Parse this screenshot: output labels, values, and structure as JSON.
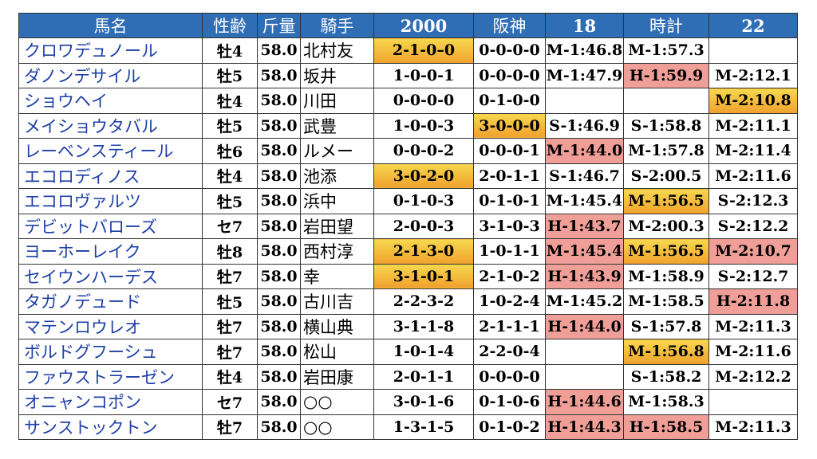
{
  "headers": [
    "馬名",
    "性齢",
    "斤量",
    "騎手",
    "2000",
    "阪神",
    "18",
    "時計",
    "22"
  ],
  "colors": {
    "header": "#2f6db5",
    "orange": "#f0a12e",
    "red": "#ef9f98",
    "name": "#1d3fa6"
  },
  "rows": [
    {
      "cells": [
        "クロワデュノール",
        "牡4",
        "58.0",
        "北村友",
        "2-1-0–0",
        "0-0-0-0",
        "M-1:46.8",
        "M-1:57.3",
        ""
      ],
      "hl": [
        "",
        "",
        "",
        "",
        "orange",
        "",
        "",
        "",
        ""
      ]
    },
    {
      "cells": [
        "ダノンデサイル",
        "牡5",
        "58.0",
        "坂井",
        "1-0-0-1",
        "0-0-0-0",
        "M-1:47.9",
        "H-1:59.9",
        "M-2:12.1"
      ],
      "hl": [
        "",
        "",
        "",
        "",
        "",
        "",
        "",
        "red",
        ""
      ]
    },
    {
      "cells": [
        "ショウヘイ",
        "牡4",
        "58.0",
        "川田",
        "0-0-0-0",
        "0-1-0-0",
        "",
        "",
        "M-2:10.8"
      ],
      "hl": [
        "",
        "",
        "",
        "",
        "",
        "",
        "",
        "",
        "orange"
      ]
    },
    {
      "cells": [
        "メイショウタバル",
        "牡5",
        "58.0",
        "武豊",
        "1-0-0-3",
        "3-0-0-0",
        "S-1:46.9",
        "S-1:58.8",
        "M-2:11.1"
      ],
      "hl": [
        "",
        "",
        "",
        "",
        "",
        "orange",
        "",
        "",
        ""
      ]
    },
    {
      "cells": [
        "レーベンスティール",
        "牡6",
        "58.0",
        "ルメー",
        "0-0-0-2",
        "0-0-0-1",
        "M-1:44.0",
        "M-1:57.8",
        "M-2:11.4"
      ],
      "hl": [
        "",
        "",
        "",
        "",
        "",
        "",
        "red",
        "",
        ""
      ]
    },
    {
      "cells": [
        "エコロディノス",
        "牡4",
        "58.0",
        "池添",
        "3-0-2-0",
        "2-0-1-1",
        "S-1:46.7",
        "S-2:00.5",
        "M-2:11.6"
      ],
      "hl": [
        "",
        "",
        "",
        "",
        "orange",
        "",
        "",
        "",
        ""
      ]
    },
    {
      "cells": [
        "エコロヴァルツ",
        "牡5",
        "58.0",
        "浜中",
        "0-1-0-3",
        "0-1-0-1",
        "M-1:45.4",
        "M-1:56.5",
        "S-2:12.3"
      ],
      "hl": [
        "",
        "",
        "",
        "",
        "",
        "",
        "",
        "orange",
        ""
      ]
    },
    {
      "cells": [
        "デビットバローズ",
        "セ7",
        "58.0",
        "岩田望",
        "2-0-0-3",
        "3-1-0-3",
        "H-1:43.7",
        "M-2:00.3",
        "S-2:12.2"
      ],
      "hl": [
        "",
        "",
        "",
        "",
        "",
        "",
        "red",
        "",
        ""
      ]
    },
    {
      "cells": [
        "ヨーホーレイク",
        "牡8",
        "58.0",
        "西村淳",
        "2-1-3-0",
        "1-0-1-1",
        "M-1:45.4",
        "M-1:56.5",
        "M-2:10.7"
      ],
      "hl": [
        "",
        "",
        "",
        "",
        "orange",
        "",
        "red",
        "orange",
        "red"
      ]
    },
    {
      "cells": [
        "セイウンハーデス",
        "牡7",
        "58.0",
        "幸",
        "3-1-0-1",
        "2-1-0-2",
        "H-1:43.9",
        "M-1:58.9",
        "S-2:12.7"
      ],
      "hl": [
        "",
        "",
        "",
        "",
        "orange",
        "",
        "red",
        "",
        ""
      ]
    },
    {
      "cells": [
        "タガノデュード",
        "牡5",
        "58.0",
        "古川吉",
        "2-2-3-2",
        "1-0-2-4",
        "M-1:45.2",
        "M-1:58.5",
        "H-2:11.8"
      ],
      "hl": [
        "",
        "",
        "",
        "",
        "",
        "",
        "",
        "",
        "red"
      ]
    },
    {
      "cells": [
        "マテンロウレオ",
        "牡7",
        "58.0",
        "横山典",
        "3-1-1-8",
        "2-1-1-1",
        "H-1:44.0",
        "S-1:57.8",
        "M-2:11.3"
      ],
      "hl": [
        "",
        "",
        "",
        "",
        "",
        "",
        "red",
        "",
        ""
      ]
    },
    {
      "cells": [
        "ボルドグフーシュ",
        "牡7",
        "58.0",
        "松山",
        "1-0-1-4",
        "2-2-0-4",
        "",
        "M-1:56.8",
        "M-2:11.6"
      ],
      "hl": [
        "",
        "",
        "",
        "",
        "",
        "",
        "",
        "orange",
        ""
      ]
    },
    {
      "cells": [
        "ファウストラーゼン",
        "牡4",
        "58.0",
        "岩田康",
        "2-0-1-1",
        "0-0-0-0",
        "",
        "S-1:58.2",
        "M-2:12.2"
      ],
      "hl": [
        "",
        "",
        "",
        "",
        "",
        "",
        "",
        "",
        ""
      ]
    },
    {
      "cells": [
        "オニャンコポン",
        "セ7",
        "58.0",
        "○○",
        "3-0-1-6",
        "0-1-0-6",
        "H-1:44.6",
        "M-1:58.3",
        ""
      ],
      "hl": [
        "",
        "",
        "",
        "",
        "",
        "",
        "red",
        "",
        ""
      ]
    },
    {
      "cells": [
        "サンストックトン",
        "牡7",
        "58.0",
        "○○",
        "1-3-1-5",
        "0-1-0-2",
        "H-1:44.3",
        "H-1:58.5",
        "M-2:11.3"
      ],
      "hl": [
        "",
        "",
        "",
        "",
        "",
        "",
        "red",
        "red",
        ""
      ]
    }
  ]
}
